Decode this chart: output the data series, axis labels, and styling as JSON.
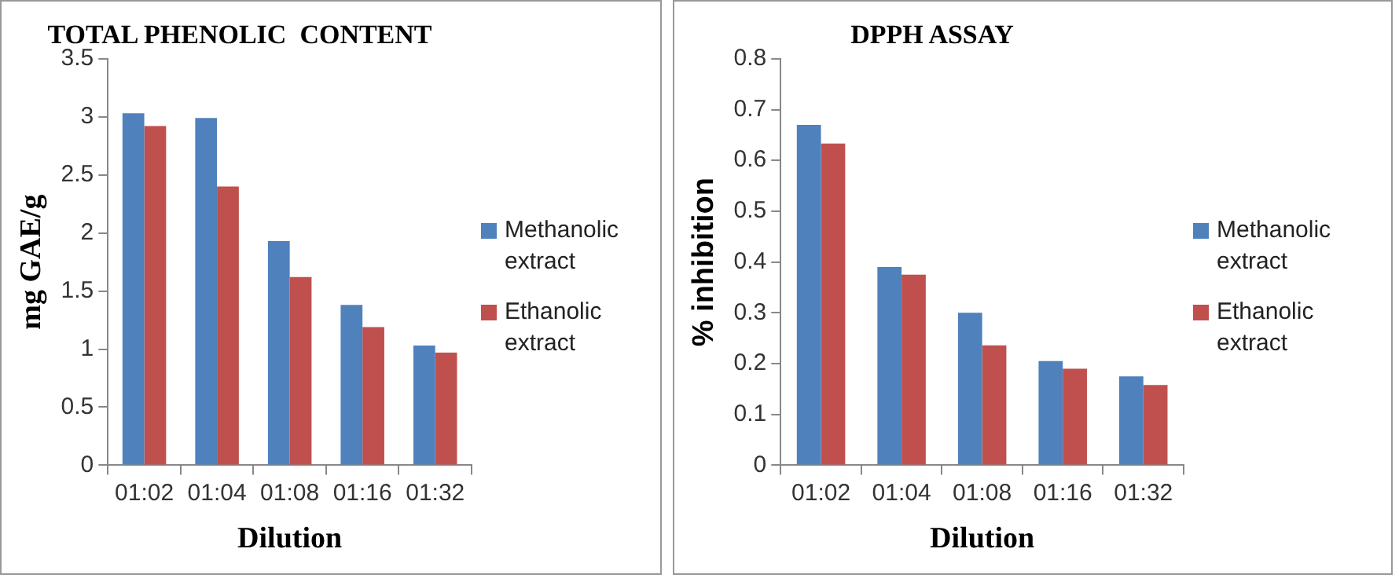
{
  "chart_data": [
    {
      "type": "bar",
      "title": "TOTAL PHENOLIC  CONTENT",
      "xlabel": "Dilution",
      "ylabel": "mg GAE/g",
      "categories": [
        "01:02",
        "01:04",
        "01:08",
        "01:16",
        "01:32"
      ],
      "series": [
        {
          "name": "Methanolic extract",
          "color": "#4f81bd",
          "values": [
            3.03,
            2.99,
            1.93,
            1.38,
            1.03
          ]
        },
        {
          "name": "Ethanolic extract",
          "color": "#c0504d",
          "values": [
            2.92,
            2.4,
            1.62,
            1.19,
            0.97
          ]
        }
      ],
      "ylim": [
        0,
        3.5
      ],
      "yticks": [
        0,
        0.5,
        1,
        1.5,
        2,
        2.5,
        3,
        3.5
      ],
      "grid": false,
      "legend": "right"
    },
    {
      "type": "bar",
      "title": "DPPH ASSAY",
      "xlabel": "Dilution",
      "ylabel": "% inhibition",
      "categories": [
        "01:02",
        "01:04",
        "01:08",
        "01:16",
        "01:32"
      ],
      "series": [
        {
          "name": "Methanolic extract",
          "color": "#4f81bd",
          "values": [
            0.67,
            0.39,
            0.3,
            0.205,
            0.175
          ]
        },
        {
          "name": "Ethanolic extract",
          "color": "#c0504d",
          "values": [
            0.633,
            0.375,
            0.236,
            0.19,
            0.158
          ]
        }
      ],
      "ylim": [
        0,
        0.8
      ],
      "yticks": [
        0,
        0.1,
        0.2,
        0.3,
        0.4,
        0.5,
        0.6,
        0.7,
        0.8
      ],
      "grid": false,
      "legend": "right"
    }
  ]
}
